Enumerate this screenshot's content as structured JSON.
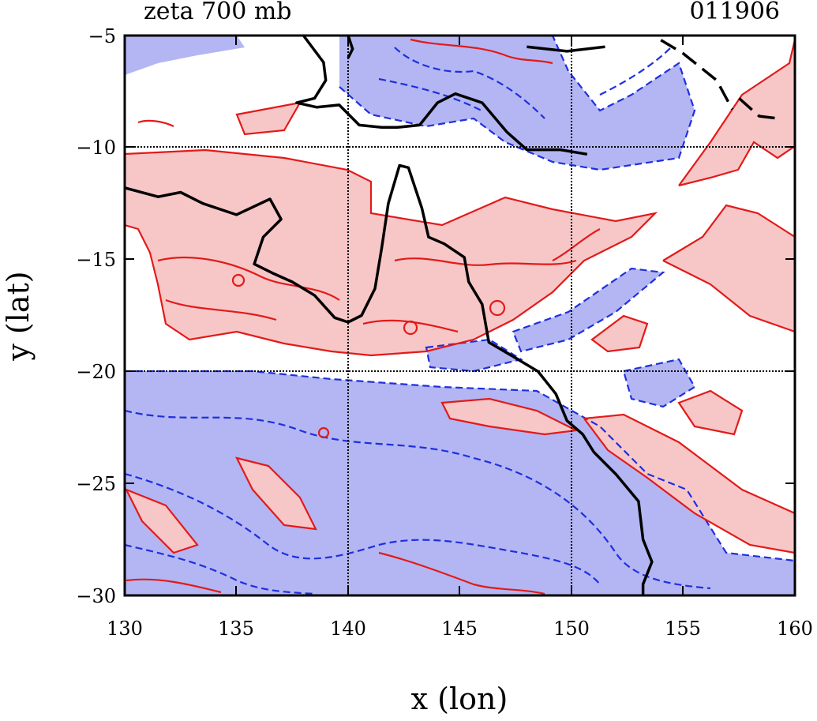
{
  "chart_data": {
    "type": "map",
    "title_left": "zeta 700 mb",
    "title_right": "011906",
    "xlabel": "x (lon)",
    "ylabel": "y (lat)",
    "xlim": [
      130,
      160
    ],
    "ylim": [
      -30,
      -5
    ],
    "x_ticks": [
      "130",
      "135",
      "140",
      "145",
      "150",
      "155",
      "160"
    ],
    "y_ticks": [
      "−5",
      "−10",
      "−15",
      "−20",
      "−25",
      "−30"
    ],
    "gridlines_lon": [
      140,
      150
    ],
    "gridlines_lat": [
      -10,
      -20
    ],
    "colors": {
      "positive_fill": "#f7c7c7",
      "positive_contour": "#e31a1a",
      "negative_fill": "#b3b6f2",
      "negative_contour": "#1f2fe0",
      "coastline": "#000000"
    },
    "coastline": [
      [
        [
          130,
          -11.8
        ],
        [
          131.5,
          -12.2
        ],
        [
          132.5,
          -12.0
        ],
        [
          133.5,
          -12.5
        ],
        [
          135.0,
          -13.0
        ],
        [
          136.5,
          -12.3
        ],
        [
          137.0,
          -13.2
        ],
        [
          136.2,
          -14.0
        ],
        [
          135.8,
          -15.2
        ],
        [
          136.6,
          -15.6
        ],
        [
          137.5,
          -16.0
        ],
        [
          138.5,
          -16.6
        ],
        [
          139.4,
          -17.6
        ],
        [
          140.0,
          -17.8
        ],
        [
          140.6,
          -17.5
        ],
        [
          141.2,
          -16.3
        ],
        [
          141.5,
          -14.5
        ],
        [
          141.8,
          -12.5
        ],
        [
          142.3,
          -10.8
        ],
        [
          142.7,
          -10.9
        ],
        [
          143.3,
          -12.7
        ],
        [
          143.6,
          -14.0
        ],
        [
          144.3,
          -14.3
        ],
        [
          145.2,
          -14.9
        ],
        [
          145.4,
          -16.0
        ],
        [
          146.0,
          -17.0
        ],
        [
          146.3,
          -18.7
        ],
        [
          147.5,
          -19.4
        ],
        [
          148.5,
          -20.0
        ],
        [
          149.3,
          -21.0
        ],
        [
          149.8,
          -22.2
        ],
        [
          150.5,
          -22.8
        ],
        [
          151.0,
          -23.6
        ],
        [
          152.0,
          -24.6
        ],
        [
          153.0,
          -25.8
        ],
        [
          153.2,
          -27.5
        ],
        [
          153.6,
          -28.5
        ],
        [
          153.2,
          -29.5
        ],
        [
          153.2,
          -30.0
        ]
      ],
      [
        [
          138.0,
          -5.0
        ],
        [
          138.9,
          -6.2
        ],
        [
          139.0,
          -7.0
        ],
        [
          138.5,
          -7.8
        ],
        [
          137.7,
          -8.0
        ],
        [
          138.6,
          -8.2
        ],
        [
          139.6,
          -8.1
        ],
        [
          140.5,
          -9.0
        ],
        [
          141.5,
          -9.1
        ],
        [
          142.2,
          -9.1
        ],
        [
          143.2,
          -9.0
        ],
        [
          144.0,
          -8.0
        ],
        [
          144.8,
          -7.6
        ],
        [
          146.0,
          -8.0
        ],
        [
          147.1,
          -9.3
        ],
        [
          148.0,
          -10.1
        ],
        [
          149.5,
          -10.1
        ],
        [
          150.7,
          -10.3
        ]
      ],
      [
        [
          140.0,
          -5.0
        ],
        [
          140.2,
          -5.6
        ],
        [
          140.0,
          -6.0
        ]
      ],
      [
        [
          148.0,
          -5.5
        ],
        [
          149.8,
          -5.7
        ],
        [
          151.5,
          -5.5
        ]
      ],
      [
        [
          154.0,
          -5.2
        ],
        [
          155.0,
          -5.8
        ],
        [
          156.5,
          -7.0
        ],
        [
          157.2,
          -8.3
        ]
      ],
      [
        [
          157.5,
          -7.8
        ],
        [
          158.4,
          -8.6
        ],
        [
          159.2,
          -8.7
        ]
      ]
    ]
  }
}
